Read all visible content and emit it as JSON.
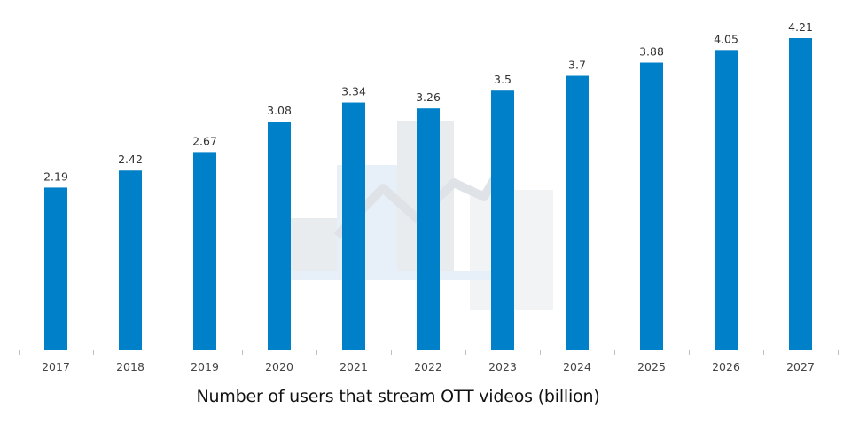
{
  "colors": {
    "bar": "#0080c8",
    "axis": "#bfbfbf",
    "label": "#333333",
    "tick_label": "#444444",
    "watermark_gray": "#e9ecef",
    "watermark_blue": "#e7f0f9"
  },
  "chart_data": {
    "type": "bar",
    "title": "",
    "xlabel": "Number of users that stream OTT videos (billion)",
    "ylabel": "",
    "ylim": [
      0,
      4.21
    ],
    "grid": false,
    "categories": [
      "2017",
      "2018",
      "2019",
      "2020",
      "2021",
      "2022",
      "2023",
      "2024",
      "2025",
      "2026",
      "2027"
    ],
    "series": [
      {
        "values": [
          2.19,
          2.42,
          2.67,
          3.08,
          3.34,
          3.26,
          3.5,
          3.7,
          3.88,
          4.05,
          4.21
        ],
        "labels": [
          "2.19",
          "2.42",
          "2.67",
          "3.08",
          "3.34",
          "3.26",
          "3.5",
          "3.7",
          "3.88",
          "4.05",
          "4.21"
        ]
      }
    ]
  }
}
